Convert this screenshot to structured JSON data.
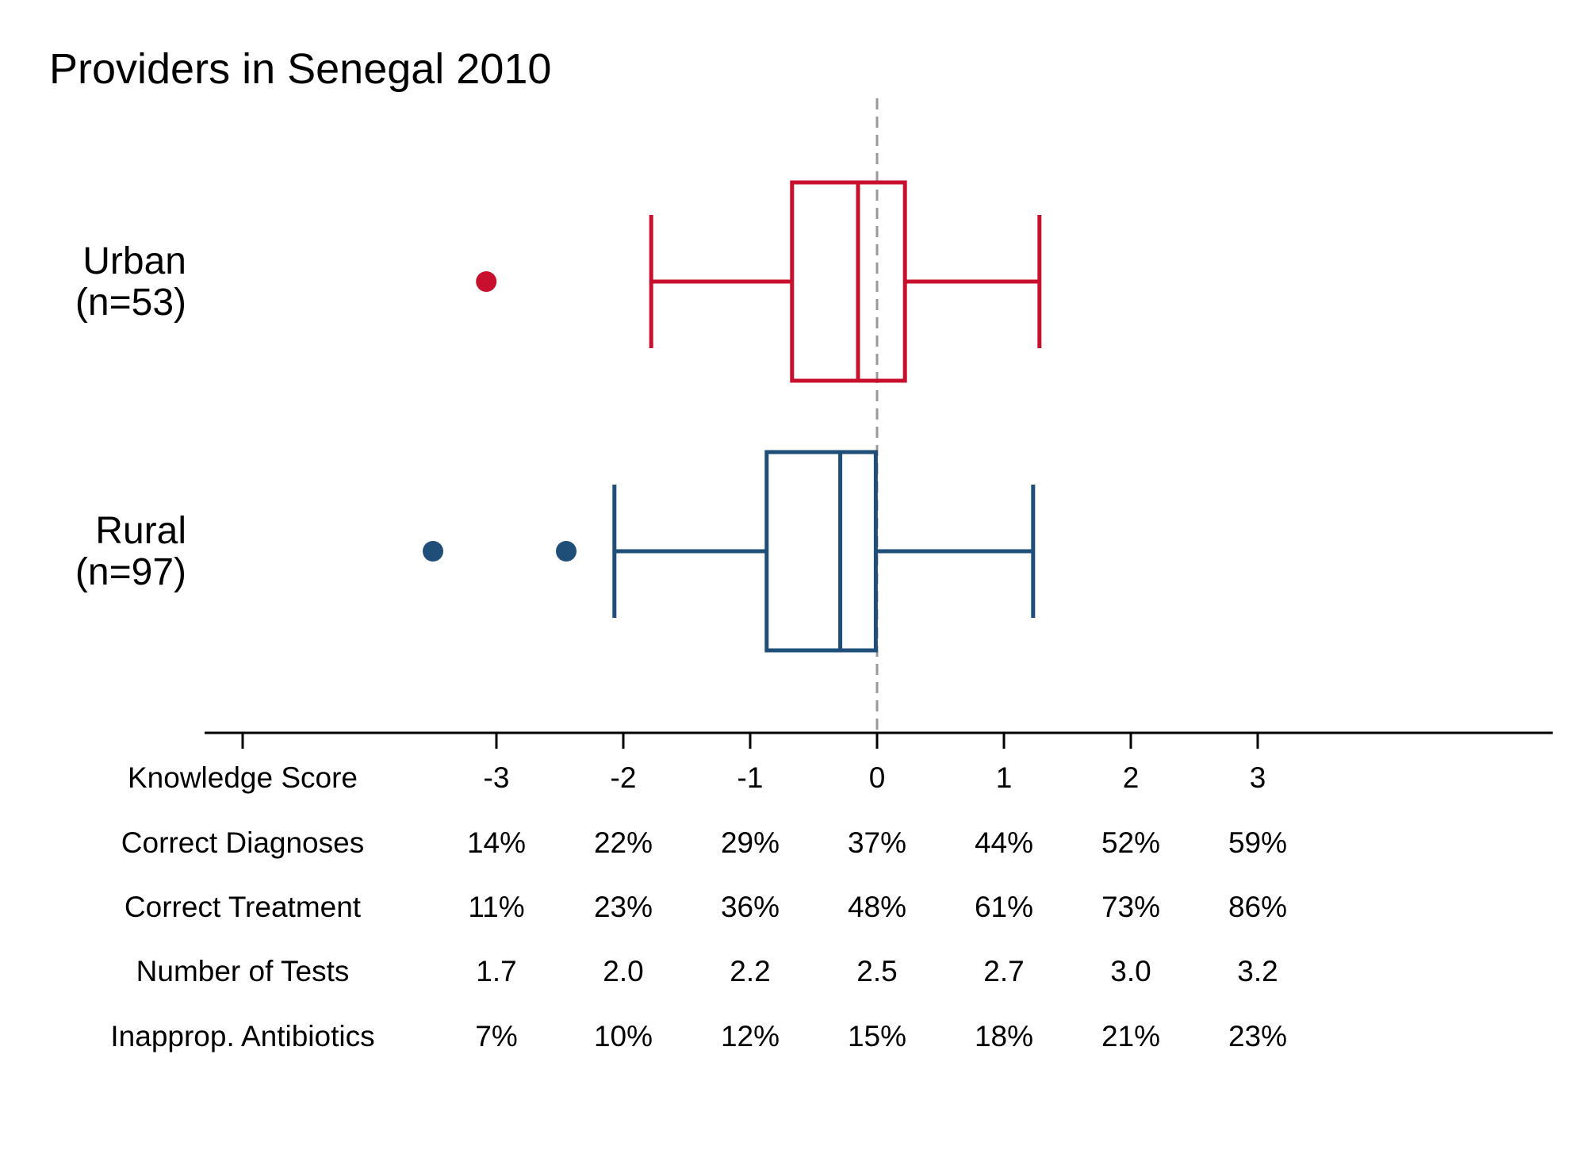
{
  "chart_data": {
    "type": "boxplot",
    "title": "Providers in Senegal 2010",
    "orientation": "horizontal",
    "xlim": [
      -3.0,
      5.3
    ],
    "reference_line": {
      "x": 0,
      "style": "dashed"
    },
    "groups": [
      {
        "name": "Urban",
        "n_label": "(n=53)",
        "color": "#c8102e",
        "whisker_low": -1.78,
        "q1": -0.67,
        "median": -0.15,
        "q3": 0.22,
        "whisker_high": 1.28,
        "outliers": [
          -3.08
        ]
      },
      {
        "name": "Rural",
        "n_label": "(n=97)",
        "color": "#1f4e79",
        "whisker_low": -2.07,
        "q1": -0.87,
        "median": -0.29,
        "q3": -0.01,
        "whisker_high": 1.23,
        "outliers": [
          -3.5,
          -2.45
        ]
      }
    ],
    "ticks": [
      {
        "x": -5,
        "label": ""
      },
      {
        "x": -3,
        "label": "-3"
      },
      {
        "x": -2,
        "label": "-2"
      },
      {
        "x": -1,
        "label": "-1"
      },
      {
        "x": 0,
        "label": "0"
      },
      {
        "x": 1,
        "label": "1"
      },
      {
        "x": 2,
        "label": "2"
      },
      {
        "x": 3,
        "label": "3"
      }
    ],
    "table": {
      "row_label_x": -5,
      "rows": [
        {
          "label": "Knowledge Score",
          "values": [
            "-3",
            "-2",
            "-1",
            "0",
            "1",
            "2",
            "3"
          ]
        },
        {
          "label": "Correct Diagnoses",
          "values": [
            "14%",
            "22%",
            "29%",
            "37%",
            "44%",
            "52%",
            "59%"
          ]
        },
        {
          "label": "Correct Treatment",
          "values": [
            "11%",
            "23%",
            "36%",
            "48%",
            "61%",
            "73%",
            "86%"
          ]
        },
        {
          "label": "Number of Tests",
          "values": [
            "1.7",
            "2.0",
            "2.2",
            "2.5",
            "2.7",
            "3.0",
            "3.2"
          ]
        },
        {
          "label": "Inapprop. Antibiotics",
          "values": [
            "7%",
            "10%",
            "12%",
            "15%",
            "18%",
            "21%",
            "23%"
          ]
        }
      ],
      "value_x": [
        -3,
        -2,
        -1,
        0,
        1,
        2,
        3
      ]
    }
  }
}
